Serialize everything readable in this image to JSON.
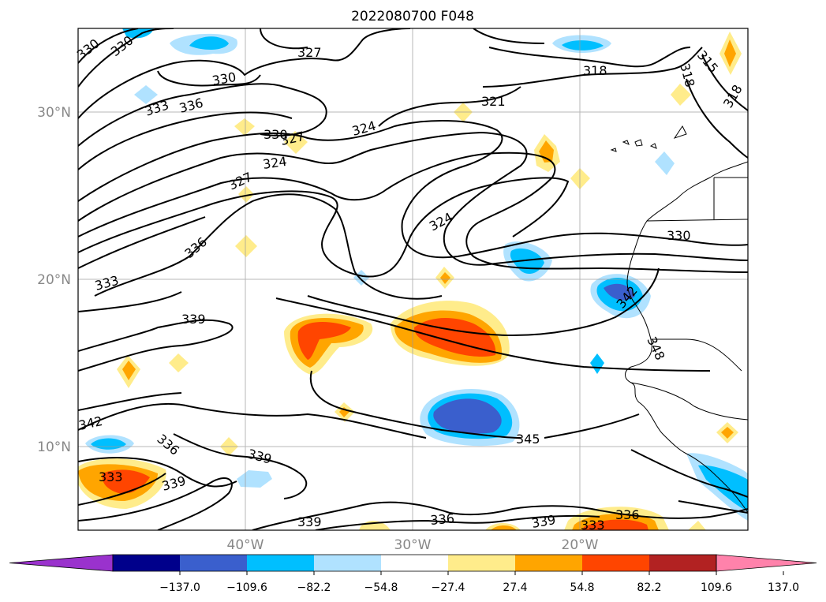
{
  "title": "2022080700 F048",
  "map": {
    "lat_labels": [
      "30°N",
      "20°N",
      "10°N"
    ],
    "lon_labels": [
      "40°W",
      "30°W",
      "20°W"
    ],
    "contour_labels": [
      "330",
      "330",
      "327",
      "330",
      "333",
      "336",
      "318",
      "315",
      "318",
      "318",
      "321",
      "324",
      "330",
      "327",
      "324",
      "327",
      "324",
      "330",
      "336",
      "333",
      "339",
      "342",
      "348",
      "342",
      "336",
      "339",
      "345",
      "333",
      "339",
      "339",
      "336",
      "339",
      "333",
      "336"
    ],
    "line_color": "#000000",
    "grid_color": "#999999"
  },
  "colorbar": {
    "tick_labels": [
      "−137.0",
      "−109.6",
      "−82.2",
      "−54.8",
      "−27.4",
      "27.4",
      "54.8",
      "82.2",
      "109.6",
      "137.0"
    ],
    "colors": [
      "#9a32cd",
      "#00008b",
      "#3a5fcd",
      "#00bfff",
      "#b0e2ff",
      "#ffffff",
      "#ffec8b",
      "#ffa500",
      "#ff4500",
      "#b22222",
      "#ff82ab"
    ]
  }
}
